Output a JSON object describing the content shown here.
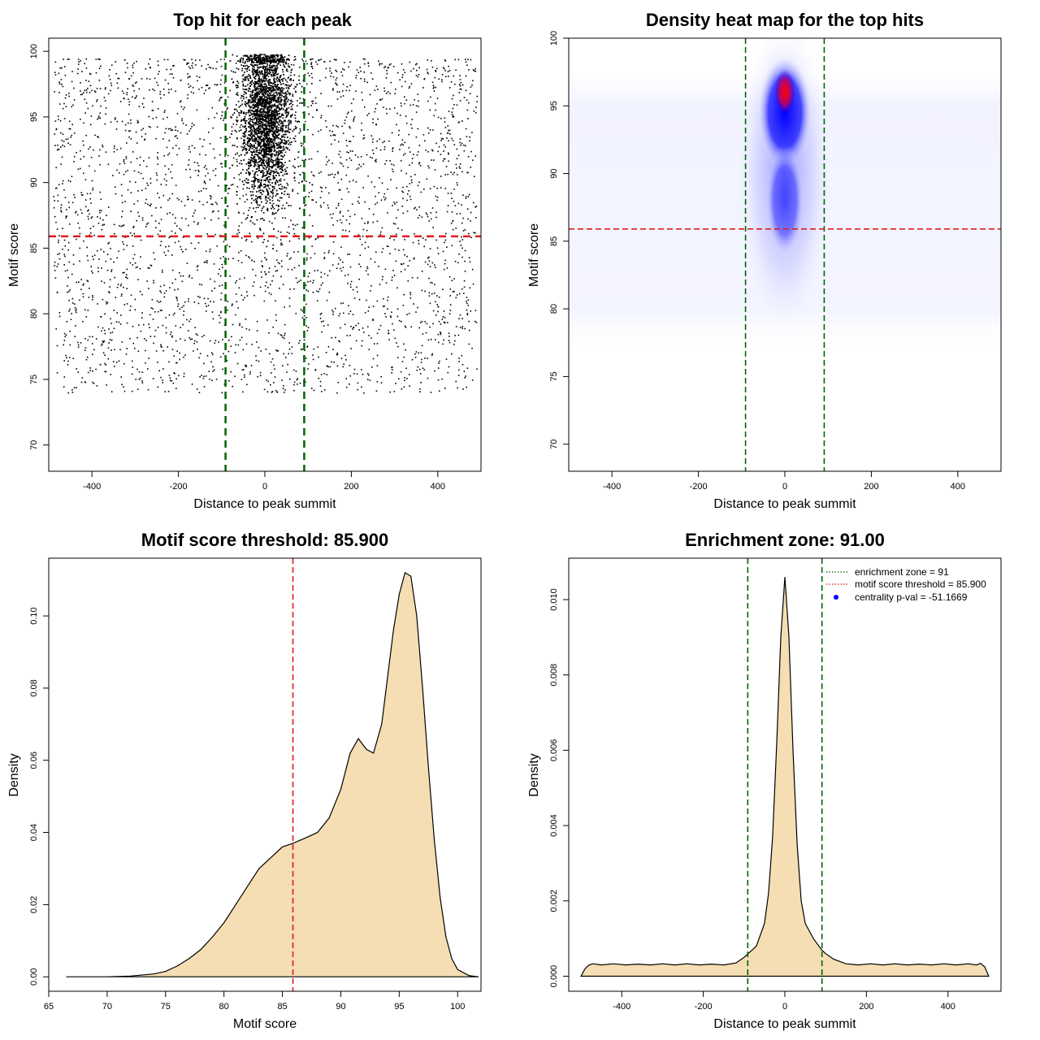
{
  "colors": {
    "points": "#000000",
    "green_line": "#006400",
    "red_line": "#e31a1c",
    "fill": "#f5deb3",
    "density_low": "#ffffff",
    "density_mid": "#0000ff",
    "density_high": "#ff0000"
  },
  "chart_data": [
    {
      "id": "p1",
      "type": "scatter",
      "title": "Top hit for each peak",
      "xlabel": "Distance to peak summit",
      "ylabel": "Motif score",
      "xlim": [
        -500,
        500
      ],
      "ylim": [
        68,
        101
      ],
      "xticks": [
        -400,
        -200,
        0,
        200,
        400
      ],
      "yticks": [
        70,
        75,
        80,
        85,
        90,
        95,
        100
      ],
      "vlines": [
        -91,
        91
      ],
      "hline": 85.9,
      "points_sample": {
        "uniform": {
          "count": 3000,
          "x_range": [
            -490,
            490
          ],
          "y_range": [
            74,
            99.5
          ]
        },
        "central": {
          "count": 5500,
          "x_center": 0,
          "x_sd": 28,
          "y_center": 95,
          "y_sd": 3.2,
          "y_max": 99.8
        }
      }
    },
    {
      "id": "p2",
      "type": "heatmap",
      "title": "Density heat map for the top hits",
      "xlabel": "Distance to peak summit",
      "ylabel": "Motif score",
      "xlim": [
        -500,
        500
      ],
      "ylim": [
        68,
        100
      ],
      "xticks": [
        -400,
        -200,
        0,
        200,
        400
      ],
      "yticks": [
        70,
        75,
        80,
        85,
        90,
        95,
        100
      ],
      "vlines": [
        -91,
        91
      ],
      "hline": 85.9,
      "peak": {
        "x": 0,
        "y": 96
      }
    },
    {
      "id": "p3",
      "type": "area",
      "title": "Motif score threshold: 85.900",
      "xlabel": "Motif score",
      "ylabel": "Density",
      "xlim": [
        65,
        102
      ],
      "ylim": [
        -0.004,
        0.116
      ],
      "xticks": [
        65,
        70,
        75,
        80,
        85,
        90,
        95,
        100
      ],
      "yticks": [
        0.0,
        0.02,
        0.04,
        0.06,
        0.08,
        0.1
      ],
      "ytick_labels": [
        "0.00",
        "0.02",
        "0.04",
        "0.06",
        "0.08",
        "0.10"
      ],
      "vline": 85.9,
      "x": [
        66.5,
        70,
        72,
        74,
        75,
        76,
        77,
        78,
        79,
        80,
        81,
        82,
        83,
        84,
        85,
        85.9,
        87,
        88,
        89,
        90,
        90.8,
        91.5,
        92.2,
        92.8,
        93.5,
        94,
        94.5,
        95,
        95.5,
        96,
        96.5,
        97,
        97.5,
        98,
        98.5,
        99,
        99.5,
        100,
        101,
        101.8
      ],
      "y": [
        0,
        0,
        0.0002,
        0.0008,
        0.0015,
        0.003,
        0.005,
        0.0075,
        0.011,
        0.015,
        0.02,
        0.025,
        0.03,
        0.033,
        0.036,
        0.037,
        0.0385,
        0.04,
        0.044,
        0.052,
        0.062,
        0.066,
        0.063,
        0.062,
        0.07,
        0.083,
        0.096,
        0.106,
        0.112,
        0.111,
        0.1,
        0.08,
        0.058,
        0.038,
        0.022,
        0.011,
        0.005,
        0.002,
        0.0003,
        0
      ]
    },
    {
      "id": "p4",
      "type": "area",
      "title": "Enrichment zone: 91.00",
      "xlabel": "Distance to peak summit",
      "ylabel": "Density",
      "xlim": [
        -530,
        530
      ],
      "ylim": [
        -0.0004,
        0.0111
      ],
      "xticks": [
        -400,
        -200,
        0,
        200,
        400
      ],
      "yticks": [
        0.0,
        0.002,
        0.004,
        0.006,
        0.008,
        0.01
      ],
      "ytick_labels": [
        "0.000",
        "0.002",
        "0.004",
        "0.006",
        "0.008",
        "0.010"
      ],
      "vlines": [
        -91,
        91
      ],
      "x": [
        -500,
        -490,
        -480,
        -470,
        -450,
        -420,
        -390,
        -360,
        -330,
        -300,
        -270,
        -240,
        -210,
        -180,
        -150,
        -120,
        -100,
        -90,
        -70,
        -50,
        -40,
        -30,
        -20,
        -10,
        0,
        10,
        20,
        30,
        40,
        50,
        70,
        90,
        100,
        120,
        150,
        180,
        210,
        240,
        270,
        300,
        330,
        360,
        390,
        420,
        450,
        470,
        480,
        490,
        500
      ],
      "y": [
        0,
        0.0002,
        0.0003,
        0.00033,
        0.0003,
        0.00033,
        0.0003,
        0.00032,
        0.0003,
        0.00033,
        0.0003,
        0.00033,
        0.0003,
        0.00032,
        0.0003,
        0.00035,
        0.0005,
        0.0006,
        0.0008,
        0.0014,
        0.0022,
        0.0037,
        0.0062,
        0.009,
        0.0106,
        0.009,
        0.006,
        0.0035,
        0.002,
        0.0014,
        0.001,
        0.0007,
        0.0006,
        0.00045,
        0.00033,
        0.0003,
        0.00033,
        0.0003,
        0.00033,
        0.0003,
        0.00032,
        0.0003,
        0.00033,
        0.0003,
        0.00033,
        0.0003,
        0.00034,
        0.00025,
        0
      ]
    }
  ],
  "legend": {
    "items": [
      {
        "label": "enrichment zone = 91",
        "style": "dotted",
        "color": "#006400"
      },
      {
        "label": "motif score threshold = 85.900",
        "style": "dotted",
        "color": "#e31a1c"
      },
      {
        "label": "centrality p-val = -51.1669",
        "style": "point",
        "color": "#0000ff"
      }
    ]
  }
}
